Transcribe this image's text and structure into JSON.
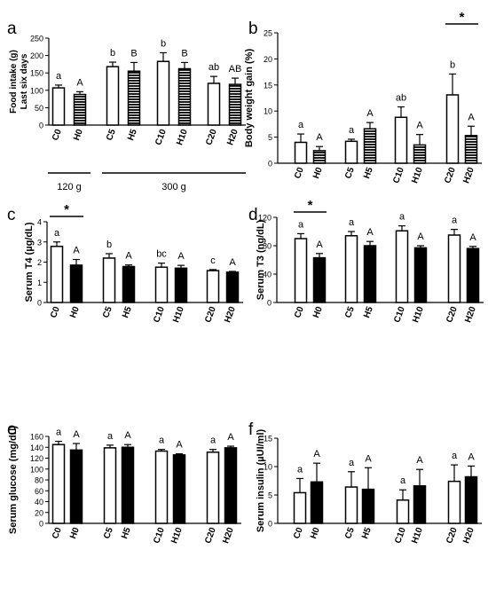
{
  "chart_data": [
    {
      "panel": "a",
      "type": "bar",
      "ylabel_lines": [
        "Food intake (g)",
        "Last six days"
      ],
      "ylim": [
        0,
        250
      ],
      "yticks": [
        0,
        50,
        100,
        150,
        200,
        250
      ],
      "categories": [
        "C0",
        "H0",
        "C5",
        "H5",
        "C10",
        "H10",
        "C20",
        "H20"
      ],
      "values": [
        107,
        88,
        168,
        155,
        183,
        162,
        120,
        117
      ],
      "errors": [
        8,
        8,
        13,
        25,
        25,
        18,
        20,
        18
      ],
      "fills": [
        "white",
        "hatch",
        "white",
        "hatch",
        "white",
        "hatch",
        "white",
        "hatch"
      ],
      "letters": [
        "a",
        "A",
        "b",
        "B",
        "b",
        "B",
        "ab",
        "AB"
      ],
      "groups": [
        {
          "label": "120 g",
          "from": 0,
          "to": 1
        },
        {
          "label": "300 g",
          "from": 2,
          "to": 7
        }
      ]
    },
    {
      "panel": "b",
      "type": "bar",
      "ylabel": "Body weight gain (%)",
      "ylim": [
        0,
        25
      ],
      "yticks": [
        0,
        5,
        10,
        15,
        20,
        25
      ],
      "categories": [
        "C0",
        "H0",
        "C5",
        "H5",
        "C10",
        "H10",
        "C20",
        "H20"
      ],
      "values": [
        4.0,
        2.4,
        4.2,
        6.6,
        8.8,
        3.5,
        13.1,
        5.3
      ],
      "errors": [
        1.6,
        0.8,
        0.4,
        1.2,
        2.0,
        2.0,
        4.0,
        1.8
      ],
      "fills": [
        "white",
        "hatch",
        "white",
        "hatch",
        "white",
        "hatch",
        "white",
        "hatch"
      ],
      "letters": [
        "a",
        "A",
        "a",
        "A",
        "ab",
        "A",
        "b",
        "A"
      ],
      "significance": [
        {
          "from": 6,
          "to": 7,
          "label": "*"
        }
      ]
    },
    {
      "panel": "c",
      "type": "bar",
      "ylabel": "Serum T4 (µg/dL)",
      "ylim": [
        0,
        4
      ],
      "yticks": [
        0,
        1,
        2,
        3,
        4
      ],
      "categories": [
        "C0",
        "H0",
        "C5",
        "H5",
        "C10",
        "H10",
        "C20",
        "H20"
      ],
      "values": [
        2.78,
        1.85,
        2.2,
        1.78,
        1.75,
        1.7,
        1.58,
        1.5
      ],
      "errors": [
        0.22,
        0.28,
        0.22,
        0.08,
        0.2,
        0.14,
        0.05,
        0.04
      ],
      "fills": [
        "white",
        "black",
        "white",
        "black",
        "white",
        "black",
        "white",
        "black"
      ],
      "letters": [
        "a",
        "A",
        "b",
        "A",
        "bc",
        "A",
        "c",
        "A"
      ],
      "significance": [
        {
          "from": 0,
          "to": 1,
          "label": "*"
        }
      ]
    },
    {
      "panel": "d",
      "type": "bar",
      "ylabel": "Serum T3 (ng/dL)",
      "ylim": [
        0,
        120
      ],
      "yticks": [
        0,
        40,
        80,
        120
      ],
      "categories": [
        "C0",
        "H0",
        "C5",
        "H5",
        "C10",
        "H10",
        "C20",
        "H20"
      ],
      "values": [
        90,
        63,
        94,
        80,
        101,
        77,
        95,
        76
      ],
      "errors": [
        7,
        6,
        6,
        6,
        7,
        3,
        8,
        3
      ],
      "fills": [
        "white",
        "black",
        "white",
        "black",
        "white",
        "black",
        "white",
        "black"
      ],
      "letters": [
        "a",
        "A",
        "a",
        "A",
        "a",
        "A",
        "a",
        "A"
      ],
      "significance": [
        {
          "from": 0,
          "to": 1,
          "label": "*"
        }
      ]
    },
    {
      "panel": "e",
      "type": "bar",
      "ylabel": "Serum glucose (mg/dL)",
      "ylim": [
        0,
        160
      ],
      "yticks": [
        0,
        20,
        40,
        60,
        80,
        100,
        120,
        140,
        160
      ],
      "categories": [
        "C0",
        "H0",
        "C5",
        "H5",
        "C10",
        "H10",
        "C20",
        "H20"
      ],
      "values": [
        145,
        135,
        139,
        140,
        133,
        126,
        131,
        139
      ],
      "errors": [
        6,
        12,
        5,
        5,
        3,
        2,
        5,
        3
      ],
      "fills": [
        "white",
        "black",
        "white",
        "black",
        "white",
        "black",
        "white",
        "black"
      ],
      "letters": [
        "a",
        "A",
        "a",
        "A",
        "a",
        "A",
        "a",
        "A"
      ]
    },
    {
      "panel": "f",
      "type": "bar",
      "ylabel": "Serum insulin (µUI/ml)",
      "ylim": [
        0,
        15
      ],
      "yticks": [
        0,
        5,
        10,
        15
      ],
      "categories": [
        "C0",
        "H0",
        "C5",
        "H5",
        "C10",
        "H10",
        "C20",
        "H20"
      ],
      "values": [
        5.4,
        7.3,
        6.4,
        6.0,
        4.1,
        6.6,
        7.4,
        8.2
      ],
      "errors": [
        2.5,
        3.3,
        2.7,
        3.8,
        1.8,
        2.9,
        2.9,
        1.9
      ],
      "fills": [
        "white",
        "black",
        "white",
        "black",
        "white",
        "black",
        "white",
        "black"
      ],
      "letters": [
        "a",
        "A",
        "a",
        "A",
        "a",
        "A",
        "a",
        "A"
      ]
    }
  ]
}
